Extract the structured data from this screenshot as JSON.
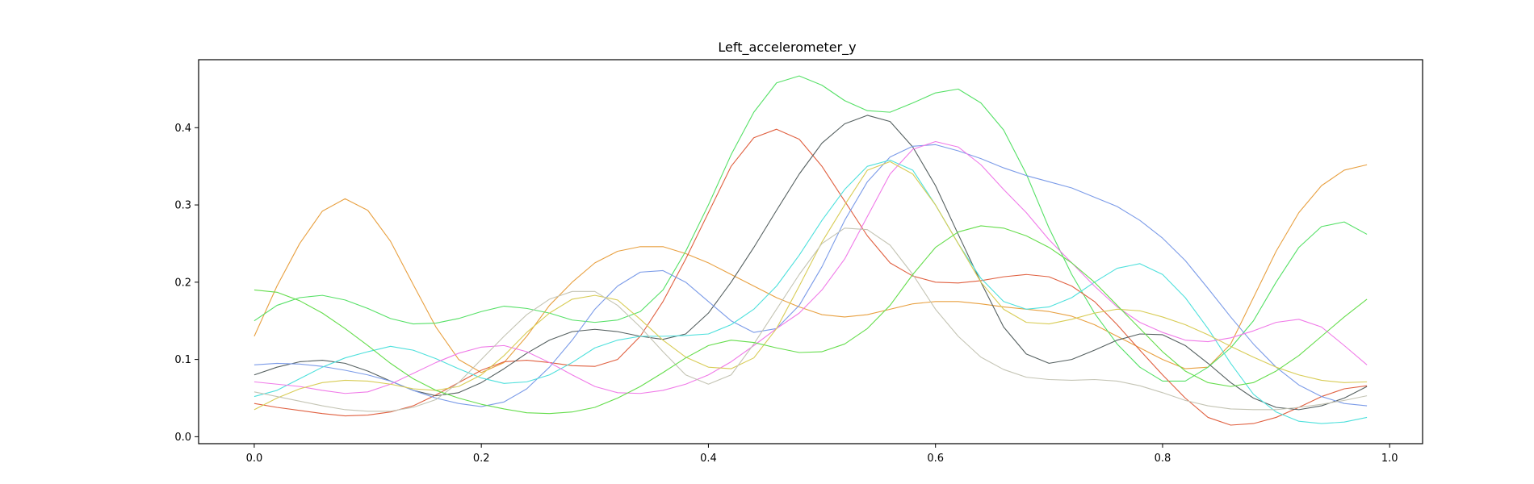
{
  "chart_data": {
    "type": "line",
    "title": "Left_accelerometer_y",
    "xlabel": "",
    "ylabel": "",
    "xlim": [
      -0.049,
      1.029
    ],
    "ylim": [
      -0.009,
      0.488
    ],
    "xticks": [
      0.0,
      0.2,
      0.4,
      0.6,
      0.8,
      1.0
    ],
    "xtick_labels": [
      "0.0",
      "0.2",
      "0.4",
      "0.6",
      "0.8",
      "1.0"
    ],
    "yticks": [
      0.0,
      0.1,
      0.2,
      0.3,
      0.4
    ],
    "ytick_labels": [
      "0.0",
      "0.1",
      "0.2",
      "0.3",
      "0.4"
    ],
    "grid": false,
    "legend": "none",
    "x": [
      0.0,
      0.02,
      0.04,
      0.06,
      0.08,
      0.1,
      0.12,
      0.14,
      0.16,
      0.18,
      0.2,
      0.22,
      0.24,
      0.26,
      0.28,
      0.3,
      0.32,
      0.34,
      0.36,
      0.38,
      0.4,
      0.42,
      0.44,
      0.46,
      0.48,
      0.5,
      0.52,
      0.54,
      0.56,
      0.58,
      0.6,
      0.62,
      0.64,
      0.66,
      0.68,
      0.7,
      0.72,
      0.74,
      0.76,
      0.78,
      0.8,
      0.82,
      0.84,
      0.86,
      0.88,
      0.9,
      0.92,
      0.94,
      0.96,
      0.98
    ],
    "series": [
      {
        "color": "#e8a040",
        "values": [
          0.13,
          0.195,
          0.25,
          0.292,
          0.308,
          0.293,
          0.253,
          0.197,
          0.142,
          0.1,
          0.083,
          0.096,
          0.13,
          0.17,
          0.2,
          0.225,
          0.24,
          0.246,
          0.246,
          0.237,
          0.225,
          0.21,
          0.195,
          0.18,
          0.168,
          0.158,
          0.155,
          0.158,
          0.165,
          0.172,
          0.175,
          0.175,
          0.172,
          0.168,
          0.165,
          0.162,
          0.156,
          0.145,
          0.13,
          0.115,
          0.1,
          0.088,
          0.09,
          0.12,
          0.18,
          0.24,
          0.29,
          0.325,
          0.345,
          0.352
        ]
      },
      {
        "color": "#55e066",
        "values": [
          0.15,
          0.17,
          0.18,
          0.183,
          0.177,
          0.166,
          0.153,
          0.146,
          0.147,
          0.153,
          0.162,
          0.169,
          0.166,
          0.16,
          0.151,
          0.148,
          0.151,
          0.162,
          0.19,
          0.24,
          0.3,
          0.365,
          0.42,
          0.458,
          0.467,
          0.455,
          0.435,
          0.422,
          0.42,
          0.432,
          0.445,
          0.45,
          0.432,
          0.397,
          0.34,
          0.27,
          0.21,
          0.16,
          0.12,
          0.09,
          0.072,
          0.072,
          0.09,
          0.115,
          0.15,
          0.2,
          0.245,
          0.272,
          0.278,
          0.262
        ]
      },
      {
        "color": "#e06040",
        "values": [
          0.043,
          0.038,
          0.034,
          0.03,
          0.027,
          0.028,
          0.032,
          0.04,
          0.054,
          0.07,
          0.086,
          0.097,
          0.099,
          0.096,
          0.092,
          0.091,
          0.1,
          0.13,
          0.175,
          0.23,
          0.29,
          0.35,
          0.387,
          0.398,
          0.385,
          0.35,
          0.305,
          0.26,
          0.225,
          0.208,
          0.2,
          0.199,
          0.202,
          0.207,
          0.21,
          0.207,
          0.195,
          0.175,
          0.145,
          0.112,
          0.08,
          0.05,
          0.025,
          0.015,
          0.017,
          0.025,
          0.038,
          0.052,
          0.062,
          0.066
        ]
      },
      {
        "color": "#556060",
        "values": [
          0.08,
          0.09,
          0.097,
          0.099,
          0.095,
          0.085,
          0.072,
          0.06,
          0.053,
          0.057,
          0.07,
          0.088,
          0.108,
          0.125,
          0.136,
          0.139,
          0.136,
          0.13,
          0.126,
          0.133,
          0.16,
          0.2,
          0.245,
          0.293,
          0.34,
          0.38,
          0.405,
          0.416,
          0.408,
          0.375,
          0.325,
          0.262,
          0.2,
          0.142,
          0.107,
          0.095,
          0.1,
          0.112,
          0.125,
          0.133,
          0.132,
          0.118,
          0.095,
          0.07,
          0.05,
          0.038,
          0.035,
          0.04,
          0.05,
          0.065
        ]
      },
      {
        "color": "#7b9be8",
        "values": [
          0.093,
          0.095,
          0.094,
          0.091,
          0.086,
          0.08,
          0.072,
          0.06,
          0.05,
          0.043,
          0.039,
          0.045,
          0.062,
          0.09,
          0.125,
          0.165,
          0.195,
          0.213,
          0.215,
          0.2,
          0.175,
          0.15,
          0.135,
          0.14,
          0.17,
          0.22,
          0.28,
          0.33,
          0.362,
          0.376,
          0.378,
          0.37,
          0.36,
          0.348,
          0.338,
          0.33,
          0.322,
          0.31,
          0.298,
          0.28,
          0.257,
          0.228,
          0.192,
          0.155,
          0.12,
          0.09,
          0.067,
          0.052,
          0.043,
          0.04
        ]
      },
      {
        "color": "#4ee0dc",
        "values": [
          0.052,
          0.06,
          0.075,
          0.09,
          0.102,
          0.11,
          0.117,
          0.112,
          0.101,
          0.088,
          0.076,
          0.069,
          0.071,
          0.08,
          0.096,
          0.115,
          0.125,
          0.13,
          0.13,
          0.131,
          0.133,
          0.145,
          0.165,
          0.195,
          0.235,
          0.28,
          0.32,
          0.35,
          0.358,
          0.345,
          0.3,
          0.25,
          0.205,
          0.175,
          0.165,
          0.168,
          0.18,
          0.2,
          0.218,
          0.224,
          0.21,
          0.18,
          0.14,
          0.095,
          0.055,
          0.032,
          0.02,
          0.017,
          0.019,
          0.025
        ]
      },
      {
        "color": "#f07ae8",
        "values": [
          0.071,
          0.068,
          0.065,
          0.06,
          0.056,
          0.058,
          0.068,
          0.082,
          0.096,
          0.108,
          0.116,
          0.118,
          0.11,
          0.096,
          0.08,
          0.065,
          0.057,
          0.056,
          0.06,
          0.068,
          0.08,
          0.097,
          0.118,
          0.14,
          0.16,
          0.19,
          0.23,
          0.285,
          0.34,
          0.372,
          0.382,
          0.375,
          0.352,
          0.32,
          0.29,
          0.255,
          0.225,
          0.195,
          0.168,
          0.148,
          0.135,
          0.125,
          0.123,
          0.128,
          0.137,
          0.148,
          0.152,
          0.142,
          0.118,
          0.093
        ]
      },
      {
        "color": "#d8cc55",
        "values": [
          0.035,
          0.05,
          0.062,
          0.07,
          0.073,
          0.072,
          0.068,
          0.062,
          0.06,
          0.065,
          0.08,
          0.105,
          0.135,
          0.16,
          0.178,
          0.183,
          0.177,
          0.152,
          0.125,
          0.103,
          0.09,
          0.088,
          0.102,
          0.14,
          0.195,
          0.252,
          0.3,
          0.345,
          0.356,
          0.34,
          0.3,
          0.25,
          0.2,
          0.165,
          0.148,
          0.146,
          0.152,
          0.16,
          0.165,
          0.163,
          0.155,
          0.145,
          0.132,
          0.117,
          0.103,
          0.09,
          0.08,
          0.073,
          0.07,
          0.071
        ]
      },
      {
        "color": "#c4c4b4",
        "values": [
          0.058,
          0.052,
          0.046,
          0.04,
          0.035,
          0.033,
          0.033,
          0.038,
          0.048,
          0.07,
          0.1,
          0.13,
          0.158,
          0.178,
          0.188,
          0.188,
          0.17,
          0.142,
          0.11,
          0.08,
          0.068,
          0.08,
          0.12,
          0.165,
          0.21,
          0.25,
          0.27,
          0.268,
          0.248,
          0.21,
          0.165,
          0.13,
          0.103,
          0.087,
          0.077,
          0.074,
          0.073,
          0.074,
          0.072,
          0.066,
          0.057,
          0.047,
          0.04,
          0.036,
          0.035,
          0.035,
          0.038,
          0.042,
          0.047,
          0.053
        ]
      },
      {
        "color": "#65dd4c",
        "values": [
          0.19,
          0.187,
          0.176,
          0.16,
          0.14,
          0.118,
          0.095,
          0.075,
          0.06,
          0.05,
          0.042,
          0.036,
          0.031,
          0.03,
          0.032,
          0.038,
          0.05,
          0.065,
          0.083,
          0.102,
          0.118,
          0.125,
          0.122,
          0.115,
          0.109,
          0.11,
          0.12,
          0.14,
          0.17,
          0.21,
          0.245,
          0.265,
          0.273,
          0.27,
          0.26,
          0.245,
          0.225,
          0.2,
          0.17,
          0.14,
          0.11,
          0.085,
          0.07,
          0.065,
          0.07,
          0.085,
          0.105,
          0.13,
          0.155,
          0.178
        ]
      }
    ]
  }
}
